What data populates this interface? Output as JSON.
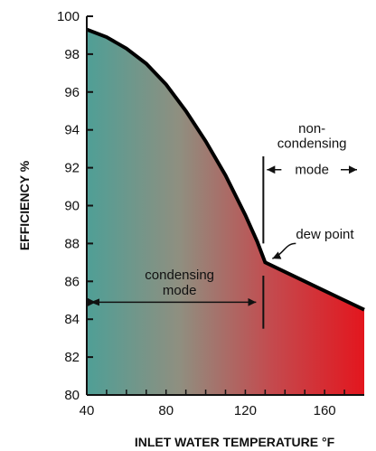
{
  "chart_data": {
    "type": "area",
    "x_label": "INLET WATER TEMPERATURE °F",
    "y_label": "EFFICIENCY %",
    "xlim": [
      40,
      180
    ],
    "ylim": [
      80,
      100
    ],
    "x_ticks": [
      "40",
      "80",
      "120",
      "160"
    ],
    "x_tick_values": [
      40,
      80,
      120,
      160
    ],
    "y_ticks": [
      "80",
      "82",
      "84",
      "86",
      "88",
      "90",
      "92",
      "94",
      "96",
      "98",
      "100"
    ],
    "y_tick_values": [
      80,
      82,
      84,
      86,
      88,
      90,
      92,
      94,
      96,
      98,
      100
    ],
    "series": [
      {
        "x": [
          40,
          50,
          60,
          70,
          80,
          90,
          100,
          110,
          120,
          126,
          130,
          140,
          150,
          160,
          170,
          180
        ],
        "y": [
          99.3,
          98.9,
          98.3,
          97.5,
          96.4,
          95.0,
          93.4,
          91.6,
          89.5,
          88.1,
          87.0,
          86.5,
          86.0,
          85.5,
          85.0,
          84.5
        ]
      }
    ],
    "gradient_colors": [
      "#4f9f96",
      "#8f8f80",
      "#c44a4e",
      "#e3161e"
    ],
    "annotations": {
      "condensing_mode": [
        "condensing",
        "mode"
      ],
      "non_condensing_mode": [
        "non-",
        "condensing",
        "mode"
      ],
      "dew_point": "dew point"
    },
    "dew_point_x": 130,
    "dew_point_y": 87.0,
    "condensing_range": [
      40,
      130
    ],
    "non_condensing_range": [
      130,
      180
    ]
  }
}
